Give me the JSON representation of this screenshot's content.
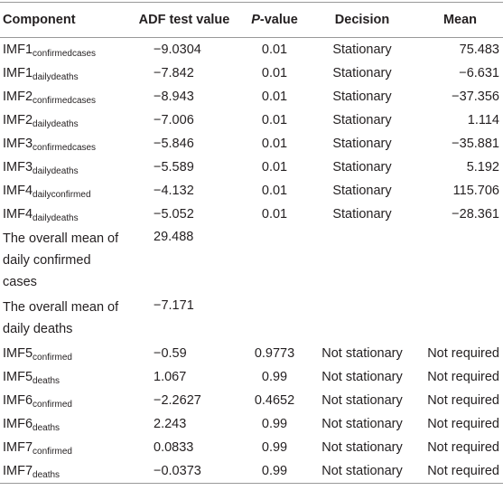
{
  "table": {
    "header": [
      "Component",
      "ADF test value",
      {
        "italic": "P",
        "rest": "-value"
      },
      "Decision",
      "Mean"
    ],
    "rows": [
      [
        {
          "main": "IMF1",
          "sub": "confirmedcases"
        },
        "−9.0304",
        "0.01",
        "Stationary",
        "75.483"
      ],
      [
        {
          "main": "IMF1",
          "sub": "dailydeaths"
        },
        "−7.842",
        "0.01",
        "Stationary",
        "−6.631"
      ],
      [
        {
          "main": "IMF2",
          "sub": "confirmedcases"
        },
        "−8.943",
        "0.01",
        "Stationary",
        "−37.356"
      ],
      [
        {
          "main": "IMF2",
          "sub": "dailydeaths"
        },
        "−7.006",
        "0.01",
        "Stationary",
        "1.114"
      ],
      [
        {
          "main": "IMF3",
          "sub": "confirmedcases"
        },
        "−5.846",
        "0.01",
        "Stationary",
        "−35.881"
      ],
      [
        {
          "main": "IMF3",
          "sub": "dailydeaths"
        },
        "−5.589",
        "0.01",
        "Stationary",
        "5.192"
      ],
      [
        {
          "main": "IMF4",
          "sub": "dailyconfirmed"
        },
        "−4.132",
        "0.01",
        "Stationary",
        "115.706"
      ],
      [
        {
          "main": "IMF4",
          "sub": "dailydeaths"
        },
        "−5.052",
        "0.01",
        "Stationary",
        "−28.361"
      ],
      [
        "The overall mean of daily confirmed cases",
        "29.488"
      ],
      [
        "The overall mean of daily deaths",
        "−7.171"
      ],
      [
        {
          "main": "IMF5",
          "sub": "confirmed"
        },
        "−0.59",
        "0.9773",
        "Not stationary",
        "Not required"
      ],
      [
        {
          "main": "IMF5",
          "sub": "deaths"
        },
        "1.067",
        "0.99",
        "Not stationary",
        "Not required"
      ],
      [
        {
          "main": "IMF6",
          "sub": "confirmed"
        },
        "−2.2627",
        "0.4652",
        "Not stationary",
        "Not required"
      ],
      [
        {
          "main": "IMF6",
          "sub": "deaths"
        },
        "2.243",
        "0.99",
        "Not stationary",
        "Not required"
      ],
      [
        {
          "main": "IMF7",
          "sub": "confirmed"
        },
        "0.0833",
        "0.99",
        "Not stationary",
        "Not required"
      ],
      [
        {
          "main": "IMF7",
          "sub": "deaths"
        },
        "−0.0373",
        "0.99",
        "Not stationary",
        "Not required"
      ]
    ]
  }
}
